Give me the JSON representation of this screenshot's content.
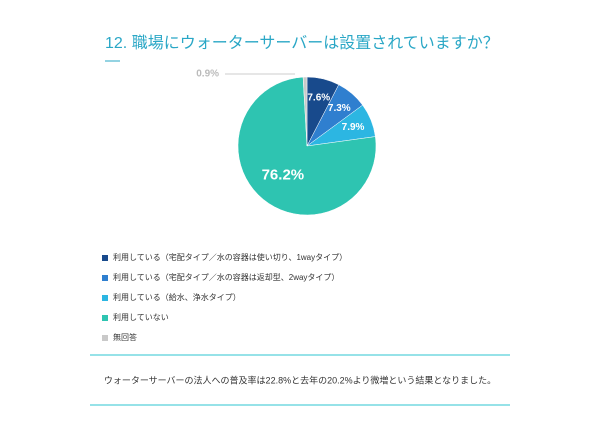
{
  "chart_data": {
    "type": "pie",
    "title": "12. 職場にウォーターサーバーは設置されていますか？",
    "categories": [
      "利用している（宅配タイプ／水の容器は使い切り、1wayタイプ）",
      "利用している（宅配タイプ／水の容器は返却型、2wayタイプ）",
      "利用している（給水、浄水タイプ）",
      "利用していない",
      "無回答"
    ],
    "values": [
      7.6,
      7.3,
      7.9,
      76.2,
      0.9
    ],
    "value_labels": [
      "7.6%",
      "7.3%",
      "7.9%",
      "76.2%",
      "0.9%"
    ],
    "colors": [
      "#184a8c",
      "#2f7fcf",
      "#2cb6e2",
      "#2ec4b1",
      "#c9c9c9"
    ],
    "note": "ウォーターサーバーの法人への普及率は22.8%と去年の20.2%より微増という結果となりました。"
  }
}
